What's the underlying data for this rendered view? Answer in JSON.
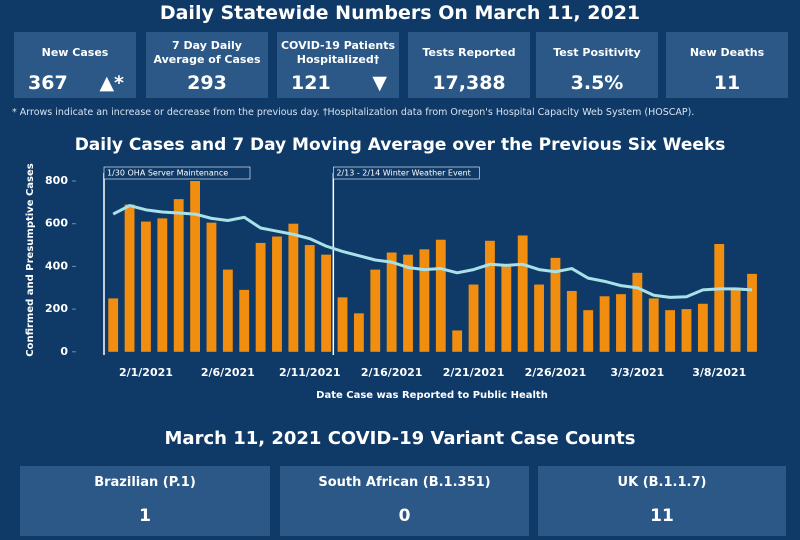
{
  "header": {
    "title": "Daily Statewide Numbers On March 11, 2021"
  },
  "kpis": [
    {
      "label": "New Cases",
      "value": "367",
      "arrow": "▲*"
    },
    {
      "label": "7 Day Daily Average of Cases",
      "value": "293"
    },
    {
      "label": "COVID-19 Patients Hospitalized†",
      "value": "121",
      "arrow": "▼"
    },
    {
      "label": "Tests Reported",
      "value": "17,388"
    },
    {
      "label": "Test Positivity",
      "value": "3.5%"
    },
    {
      "label": "New Deaths",
      "value": "11"
    }
  ],
  "footnote": "* Arrows indicate an increase or decrease from the previous day. †Hospitalization data from Oregon's Hospital Capacity Web System (HOSCAP).",
  "chart_data": {
    "type": "bar",
    "title": "Daily Cases and 7 Day Moving Average over the Previous Six Weeks",
    "x_label": "Date Case was Reported to Public Health",
    "y_label": "Confirmed and Presumptive Cases",
    "annotations": [
      "1/30 OHA Server Maintenance",
      "2/13 - 2/14 Winter Weather Event"
    ],
    "categories": [
      null,
      null,
      "2/1/2021",
      null,
      null,
      null,
      null,
      "2/6/2021",
      null,
      null,
      null,
      null,
      "2/11/2021",
      null,
      null,
      null,
      null,
      "2/16/2021",
      null,
      null,
      null,
      null,
      "2/21/2021",
      null,
      null,
      null,
      null,
      "2/26/2021",
      null,
      null,
      null,
      null,
      "3/3/2021",
      null,
      null,
      null,
      null,
      "3/8/2021",
      null,
      null
    ],
    "series": [
      {
        "type": "bar",
        "color": "#f28e0f",
        "values": [
          250,
          690,
          610,
          625,
          715,
          800,
          605,
          385,
          290,
          510,
          540,
          600,
          500,
          455,
          255,
          180,
          385,
          465,
          455,
          480,
          525,
          100,
          315,
          520,
          400,
          545,
          315,
          440,
          285,
          195,
          260,
          270,
          370,
          250,
          195,
          200,
          225,
          505,
          300,
          365
        ]
      },
      {
        "type": "line",
        "color": "#a9e1e8",
        "values": [
          645,
          685,
          665,
          655,
          650,
          645,
          625,
          615,
          630,
          580,
          565,
          550,
          530,
          495,
          470,
          450,
          430,
          420,
          395,
          385,
          390,
          370,
          385,
          410,
          405,
          410,
          385,
          375,
          390,
          345,
          330,
          310,
          300,
          265,
          255,
          258,
          290,
          295,
          295,
          290
        ]
      }
    ],
    "ylim": [
      -15,
      875
    ],
    "yticks": [
      0,
      200,
      400,
      600,
      800
    ],
    "grid": false
  },
  "variants": {
    "title": "March 11, 2021 COVID-19 Variant Case Counts",
    "cards": [
      {
        "label": "Brazilian (P.1)",
        "value": "1"
      },
      {
        "label": "South African (B.1.351)",
        "value": "0"
      },
      {
        "label": "UK (B.1.1.7)",
        "value": "11"
      }
    ]
  }
}
